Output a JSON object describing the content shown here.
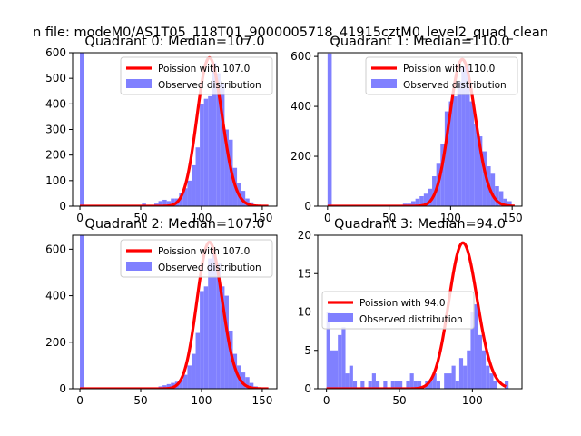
{
  "figure_title": "n file: modeM0/AS1T05_118T01_9000005718_41915cztM0_level2_quad_clean",
  "colors": {
    "bars": "#8080ff",
    "curve": "#ff0000",
    "axis": "#000000",
    "background": "#ffffff"
  },
  "chart_data": [
    {
      "type": "bar",
      "quadrant": 0,
      "title": "Quadrant 0: Median=107.0",
      "xlabel": "",
      "ylabel": "",
      "xlim": [
        -6,
        162
      ],
      "ylim": [
        0,
        600
      ],
      "xticks": [
        0,
        50,
        100,
        150
      ],
      "yticks": [
        0,
        100,
        200,
        300,
        400,
        500,
        600
      ],
      "legend": {
        "position": "top-right",
        "entries": [
          "Poission with 107.0",
          "Observed distribution"
        ]
      },
      "series": [
        {
          "name": "Observed distribution",
          "kind": "histogram",
          "bin_width": 3.4,
          "bins": [
            [
              0,
              600
            ],
            [
              3.4,
              0
            ],
            [
              6.8,
              5
            ],
            [
              10.2,
              5
            ],
            [
              37.4,
              5
            ],
            [
              40.8,
              5
            ],
            [
              44.2,
              5
            ],
            [
              51,
              10
            ],
            [
              54.4,
              5
            ],
            [
              57.8,
              5
            ],
            [
              61.2,
              10
            ],
            [
              64.6,
              20
            ],
            [
              68,
              25
            ],
            [
              71.4,
              20
            ],
            [
              74.8,
              30
            ],
            [
              78.2,
              30
            ],
            [
              81.6,
              50
            ],
            [
              85,
              70
            ],
            [
              88.4,
              100
            ],
            [
              91.8,
              160
            ],
            [
              95.2,
              230
            ],
            [
              98.6,
              400
            ],
            [
              102,
              420
            ],
            [
              105.4,
              430
            ],
            [
              108.8,
              560
            ],
            [
              112.2,
              520
            ],
            [
              115.6,
              480
            ],
            [
              119,
              300
            ],
            [
              122.4,
              260
            ],
            [
              125.8,
              150
            ],
            [
              129.2,
              90
            ],
            [
              132.6,
              60
            ],
            [
              136,
              30
            ],
            [
              139.4,
              15
            ]
          ]
        },
        {
          "name": "Poission with 107.0",
          "kind": "poisson",
          "lambda": 107.0,
          "peak": 580,
          "x_range": [
            0,
            155
          ]
        }
      ]
    },
    {
      "type": "bar",
      "quadrant": 1,
      "title": "Quadrant 1: Median=110.0",
      "xlabel": "",
      "ylabel": "",
      "xlim": [
        -8,
        158
      ],
      "ylim": [
        0,
        615
      ],
      "xticks": [
        0,
        50,
        100,
        150
      ],
      "yticks": [
        0,
        200,
        400,
        600
      ],
      "legend": {
        "position": "top-right",
        "entries": [
          "Poission with 110.0",
          "Observed distribution"
        ]
      },
      "series": [
        {
          "name": "Observed distribution",
          "kind": "histogram",
          "bin_width": 3.4,
          "bins": [
            [
              0,
              612
            ],
            [
              3.4,
              5
            ],
            [
              57.8,
              5
            ],
            [
              61.2,
              10
            ],
            [
              64.6,
              10
            ],
            [
              68,
              20
            ],
            [
              71.4,
              30
            ],
            [
              74.8,
              40
            ],
            [
              78.2,
              50
            ],
            [
              81.6,
              70
            ],
            [
              85,
              120
            ],
            [
              88.4,
              170
            ],
            [
              91.8,
              250
            ],
            [
              95.2,
              380
            ],
            [
              98.6,
              420
            ],
            [
              102,
              440
            ],
            [
              105.4,
              500
            ],
            [
              108.8,
              560
            ],
            [
              112.2,
              560
            ],
            [
              115.6,
              420
            ],
            [
              119,
              330
            ],
            [
              122.4,
              280
            ],
            [
              125.8,
              220
            ],
            [
              129.2,
              160
            ],
            [
              132.6,
              130
            ],
            [
              136,
              80
            ],
            [
              139.4,
              60
            ],
            [
              142.8,
              30
            ],
            [
              146.2,
              20
            ]
          ]
        },
        {
          "name": "Poission with 110.0",
          "kind": "poisson",
          "lambda": 110.0,
          "peak": 588,
          "x_range": [
            0,
            152
          ]
        }
      ]
    },
    {
      "type": "bar",
      "quadrant": 2,
      "title": "Quadrant 2: Median=107.0",
      "xlabel": "",
      "ylabel": "",
      "xlim": [
        -6,
        162
      ],
      "ylim": [
        0,
        660
      ],
      "xticks": [
        0,
        50,
        100,
        150
      ],
      "yticks": [
        0,
        200,
        400,
        600
      ],
      "legend": {
        "position": "top-right",
        "entries": [
          "Poission with 107.0",
          "Observed distribution"
        ]
      },
      "series": [
        {
          "name": "Observed distribution",
          "kind": "histogram",
          "bin_width": 3.4,
          "bins": [
            [
              0,
              660
            ],
            [
              3.4,
              0
            ],
            [
              64.6,
              10
            ],
            [
              68,
              15
            ],
            [
              71.4,
              20
            ],
            [
              74.8,
              25
            ],
            [
              78.2,
              30
            ],
            [
              81.6,
              40
            ],
            [
              85,
              60
            ],
            [
              88.4,
              100
            ],
            [
              91.8,
              150
            ],
            [
              95.2,
              240
            ],
            [
              98.6,
              420
            ],
            [
              102,
              440
            ],
            [
              105.4,
              560
            ],
            [
              108.8,
              580
            ],
            [
              112.2,
              540
            ],
            [
              115.6,
              440
            ],
            [
              119,
              400
            ],
            [
              122.4,
              250
            ],
            [
              125.8,
              150
            ],
            [
              129.2,
              100
            ],
            [
              132.6,
              70
            ],
            [
              136,
              50
            ],
            [
              139.4,
              25
            ],
            [
              142.8,
              10
            ]
          ]
        },
        {
          "name": "Poission with 107.0",
          "kind": "poisson",
          "lambda": 107.0,
          "peak": 630,
          "x_range": [
            0,
            155
          ]
        }
      ]
    },
    {
      "type": "bar",
      "quadrant": 3,
      "title": "Quadrant 3: Median=94.0",
      "xlabel": "",
      "ylabel": "",
      "xlim": [
        -6,
        134
      ],
      "ylim": [
        0,
        20
      ],
      "xticks": [
        0,
        50,
        100
      ],
      "yticks": [
        0,
        5,
        10,
        15,
        20
      ],
      "legend": {
        "position": "center-left",
        "entries": [
          "Poission with 94.0",
          "Observed distribution"
        ]
      },
      "series": [
        {
          "name": "Observed distribution",
          "kind": "histogram",
          "bin_width": 2.6,
          "bins": [
            [
              0,
              10
            ],
            [
              2.6,
              5
            ],
            [
              5.2,
              5
            ],
            [
              7.8,
              7
            ],
            [
              10.4,
              8
            ],
            [
              13,
              2
            ],
            [
              15.6,
              3
            ],
            [
              18.2,
              1
            ],
            [
              20.8,
              0
            ],
            [
              23.4,
              1
            ],
            [
              26,
              0
            ],
            [
              28.6,
              1
            ],
            [
              31.2,
              2
            ],
            [
              33.8,
              1
            ],
            [
              36.4,
              0
            ],
            [
              39,
              1
            ],
            [
              41.6,
              0
            ],
            [
              44.2,
              1
            ],
            [
              46.8,
              1
            ],
            [
              49.4,
              1
            ],
            [
              52,
              0
            ],
            [
              54.6,
              1
            ],
            [
              57.2,
              2
            ],
            [
              59.8,
              1
            ],
            [
              62.4,
              1
            ],
            [
              65,
              0
            ],
            [
              67.6,
              1
            ],
            [
              70.2,
              1
            ],
            [
              72.8,
              2
            ],
            [
              75.4,
              1
            ],
            [
              78,
              0
            ],
            [
              80.6,
              2
            ],
            [
              83.2,
              2
            ],
            [
              85.8,
              3
            ],
            [
              88.4,
              1
            ],
            [
              91,
              4
            ],
            [
              93.6,
              3
            ],
            [
              96.2,
              5
            ],
            [
              98.8,
              10
            ],
            [
              101.4,
              11
            ],
            [
              104,
              7
            ],
            [
              106.6,
              5
            ],
            [
              109.2,
              3
            ],
            [
              111.8,
              2
            ],
            [
              114.4,
              1
            ],
            [
              117,
              0
            ],
            [
              119.6,
              0
            ],
            [
              122.2,
              1
            ]
          ]
        },
        {
          "name": "Poission with 94.0",
          "kind": "poisson",
          "lambda": 94.0,
          "peak": 19,
          "x_range": [
            0,
            123
          ]
        }
      ]
    }
  ]
}
